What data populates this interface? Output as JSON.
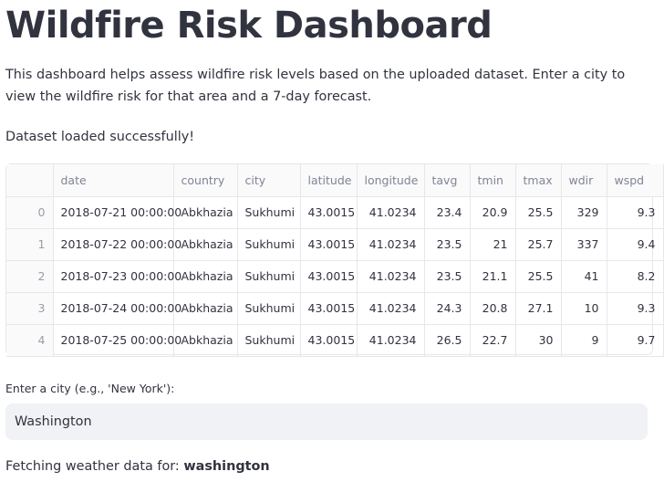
{
  "header": {
    "title": "Wildfire Risk Dashboard",
    "description": "This dashboard helps assess wildfire risk levels based on the uploaded dataset. Enter a city to view the wildfire risk for that area and a 7-day forecast."
  },
  "status": {
    "message": "Dataset loaded successfully!"
  },
  "table": {
    "columns": [
      "",
      "date",
      "country",
      "city",
      "latitude",
      "longitude",
      "tavg",
      "tmin",
      "tmax",
      "wdir",
      "wspd"
    ],
    "rows": [
      [
        "0",
        "2018-07-21 00:00:00",
        "Abkhazia",
        "Sukhumi",
        "43.0015",
        "41.0234",
        "23.4",
        "20.9",
        "25.5",
        "329",
        "9.3"
      ],
      [
        "1",
        "2018-07-22 00:00:00",
        "Abkhazia",
        "Sukhumi",
        "43.0015",
        "41.0234",
        "23.5",
        "21",
        "25.7",
        "337",
        "9.4"
      ],
      [
        "2",
        "2018-07-23 00:00:00",
        "Abkhazia",
        "Sukhumi",
        "43.0015",
        "41.0234",
        "23.5",
        "21.1",
        "25.5",
        "41",
        "8.2"
      ],
      [
        "3",
        "2018-07-24 00:00:00",
        "Abkhazia",
        "Sukhumi",
        "43.0015",
        "41.0234",
        "24.3",
        "20.8",
        "27.1",
        "10",
        "9.3"
      ],
      [
        "4",
        "2018-07-25 00:00:00",
        "Abkhazia",
        "Sukhumi",
        "43.0015",
        "41.0234",
        "26.5",
        "22.7",
        "30",
        "9",
        "9.7"
      ]
    ]
  },
  "city_input": {
    "label": "Enter a city (e.g., 'New York'):",
    "value": "Washington"
  },
  "fetching": {
    "prefix": "Fetching weather data for: ",
    "city": "washington"
  }
}
